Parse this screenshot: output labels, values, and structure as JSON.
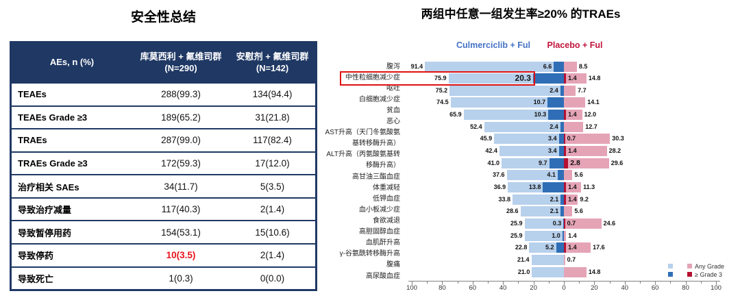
{
  "table": {
    "title": "安全性总结",
    "headers": {
      "col1": "AEs, n (%)",
      "col2_line1": "库莫西利 + 氟维司群",
      "col2_line2": "(N=290)",
      "col3_line1": "安慰剂 + 氟维司群",
      "col3_line2": "(N=142)"
    },
    "rows": [
      {
        "label": "TEAEs",
        "c1": "288(99.3)",
        "c2": "134(94.4)",
        "c1_red": false
      },
      {
        "label": "TEAEs Grade ≥3",
        "c1": "189(65.2)",
        "c2": "31(21.8)",
        "c1_red": false
      },
      {
        "label": "TRAEs",
        "c1": "287(99.0)",
        "c2": "117(82.4)",
        "c1_red": false
      },
      {
        "label": "TRAEs Grade ≥3",
        "c1": "172(59.3)",
        "c2": "17(12.0)",
        "c1_red": false
      },
      {
        "label": "治疗相关 SAEs",
        "c1": "34(11.7)",
        "c2": "5(3.5)",
        "c1_red": false
      },
      {
        "label": "导致治疗减量",
        "c1": "117(40.3)",
        "c2": "2(1.4)",
        "c1_red": false
      },
      {
        "label": "导致暂停用药",
        "c1": "154(53.1)",
        "c2": "15(10.6)",
        "c1_red": false
      },
      {
        "label": "导致停药",
        "c1": "10(3.5)",
        "c2": "2(1.4)",
        "c1_red": true
      },
      {
        "label": "导致死亡",
        "c1": "1(0.3)",
        "c2": "0(0.0)",
        "c1_red": false
      }
    ]
  },
  "chart": {
    "title": "两组中任意一组发生率≥20% 的TRAEs",
    "left_group_label": "Culmerciclib + Ful",
    "right_group_label": "Placebo + Ful",
    "legend": [
      {
        "label": "Any Grade"
      },
      {
        "label": "≥ Grade 3"
      }
    ],
    "label_lines": [
      "腹泻",
      "中性粒细胞减少症",
      "呕吐",
      "白细胞减少症",
      "贫血",
      "恶心",
      "AST升高（天门冬氨酸氨",
      "基转移酶升高）",
      "ALT升高（丙氨酸氨基转",
      "移酶升高）",
      "高甘油三酯血症",
      "体重减轻",
      "低钾血症",
      "血小板减少症",
      "食欲减退",
      "高胆固醇血症",
      "血肌酐升高",
      "γ-谷氨酰转移酶升高",
      "腹痛",
      "高尿酸血症"
    ],
    "colors": {
      "left_any": "#B7D0EC",
      "left_grade3": "#2F6EB6",
      "right_any": "#E5A4B6",
      "right_grade3": "#B51132",
      "left_group_text": "#4472C4",
      "right_group_text": "#C0143C",
      "highlight_box": "#E01010",
      "table_navy": "#1F3864",
      "table_red_text": "#E8121A"
    }
  },
  "chart_data": {
    "type": "bar",
    "subtype": "horizontal-diverging-tornado",
    "title": "两组中任意一组发生率≥20% 的TRAEs",
    "groups": [
      "Culmerciclib + Ful",
      "Placebo + Ful"
    ],
    "grades": [
      "Any Grade",
      "≥ Grade 3"
    ],
    "xlim": [
      -110,
      110
    ],
    "x_ticks": [
      100,
      80,
      60,
      40,
      20,
      0,
      20,
      40,
      60,
      80,
      100
    ],
    "grid": false,
    "legend_position": "bottom-right",
    "highlighted_category": "中性粒细胞减少症",
    "categories": [
      "腹泻",
      "中性粒细胞减少症",
      "呕吐",
      "白细胞减少症",
      "贫血",
      "恶心",
      "AST升高（天门冬氨酸氨基转移酶升高）",
      "ALT升高（丙氨酸氨基转移酶升高）",
      "高甘油三酯血症",
      "体重减轻",
      "低钾血症",
      "血小板减少症",
      "食欲减退",
      "高胆固醇血症",
      "血肌酐升高",
      "γ-谷氨酰转移酶升高",
      "腹痛",
      "高尿酸血症"
    ],
    "series": [
      {
        "name": "Culmerciclib + Ful — Any Grade",
        "values": [
          91.4,
          75.9,
          75.2,
          74.5,
          65.9,
          52.4,
          45.9,
          42.4,
          41.0,
          37.6,
          36.9,
          33.8,
          28.6,
          25.9,
          25.9,
          22.8,
          21.4,
          21.0
        ]
      },
      {
        "name": "Culmerciclib + Ful — ≥ Grade 3",
        "values": [
          6.6,
          20.3,
          2.4,
          10.7,
          10.3,
          2.4,
          3.4,
          3.4,
          9.7,
          4.1,
          13.8,
          2.1,
          2.1,
          0.3,
          1.0,
          5.2,
          null,
          null
        ]
      },
      {
        "name": "Placebo + Ful — Any Grade",
        "values": [
          8.5,
          14.8,
          7.7,
          14.1,
          12.0,
          12.7,
          30.3,
          28.2,
          29.6,
          5.6,
          11.3,
          9.2,
          5.6,
          24.6,
          1.4,
          17.6,
          0.7,
          14.8
        ]
      },
      {
        "name": "Placebo + Ful — ≥ Grade 3",
        "values": [
          null,
          1.4,
          null,
          null,
          1.4,
          null,
          0.7,
          1.4,
          2.8,
          null,
          1.4,
          1.4,
          null,
          0.7,
          null,
          1.4,
          null,
          null
        ]
      }
    ]
  }
}
